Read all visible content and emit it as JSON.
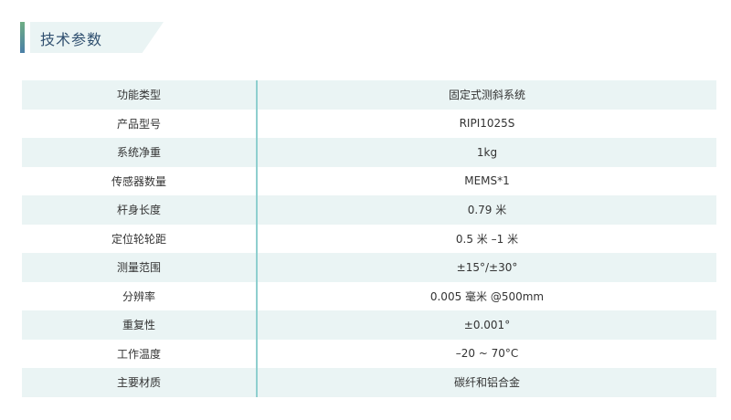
{
  "section_title": "技术参数",
  "colors": {
    "tint": "#eaf4f4",
    "divider": "#8fcfcf",
    "title": "#2f4f6f"
  },
  "table": {
    "header": [
      "功能类型",
      "固定式测斜系统"
    ],
    "rows": [
      [
        "产品型号",
        "RIPI1025S"
      ],
      [
        "系统净重",
        "1kg"
      ],
      [
        "传感器数量",
        "MEMS*1"
      ],
      [
        "杆身长度",
        "0.79 米"
      ],
      [
        "定位轮轮距",
        "0.5 米 –1 米"
      ],
      [
        "测量范围",
        "±15°/±30°"
      ],
      [
        "分辨率",
        "0.005 毫米 @500mm"
      ],
      [
        "重复性",
        "±0.001°"
      ],
      [
        "工作温度",
        "–20 ~ 70°C"
      ],
      [
        "主要材质",
        "碳纤和铝合金"
      ]
    ]
  }
}
